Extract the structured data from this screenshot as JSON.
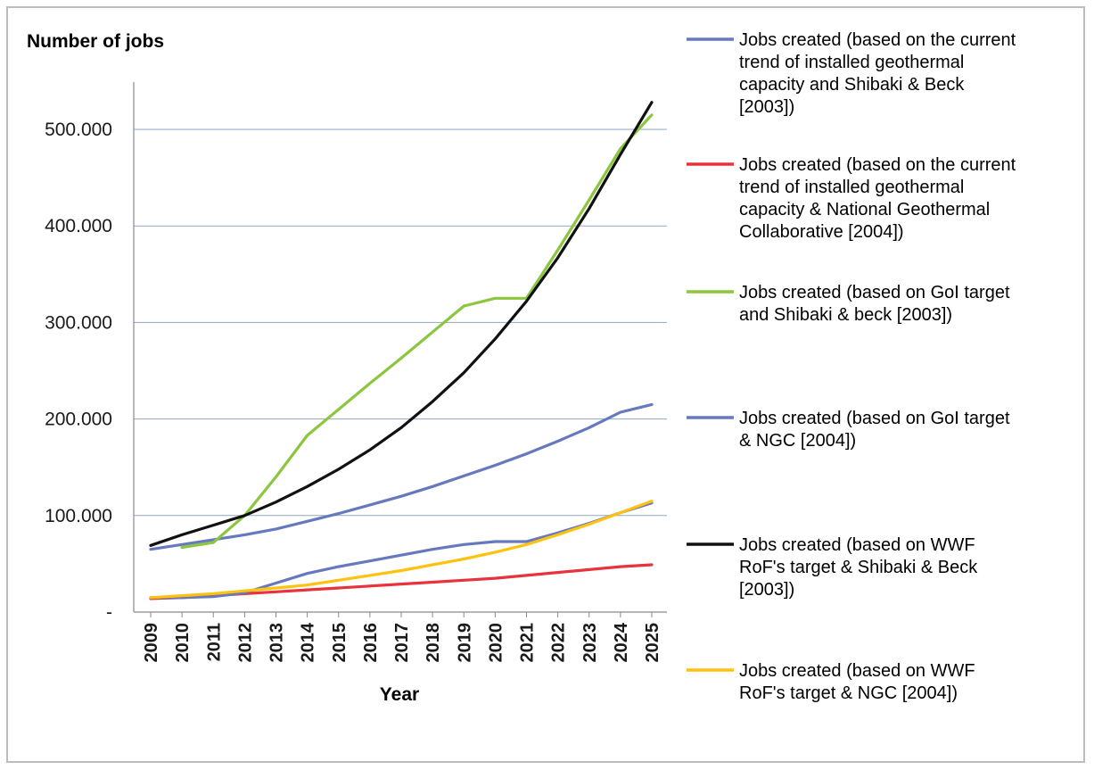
{
  "chart_data": {
    "type": "line",
    "ylabel": "Number of jobs",
    "xlabel": "Year",
    "ylim": [
      0,
      550000
    ],
    "y_ticks": [
      {
        "value": 0,
        "label": "-"
      },
      {
        "value": 100000,
        "label": "100.000"
      },
      {
        "value": 200000,
        "label": "200.000"
      },
      {
        "value": 300000,
        "label": "300.000"
      },
      {
        "value": 400000,
        "label": "400.000"
      },
      {
        "value": 500000,
        "label": "500.000"
      }
    ],
    "grid": true,
    "legend_position": "right",
    "categories": [
      "2009",
      "2010",
      "2011",
      "2012",
      "2013",
      "2014",
      "2015",
      "2016",
      "2017",
      "2018",
      "2019",
      "2020",
      "2021",
      "2022",
      "2023",
      "2024",
      "2025"
    ],
    "series": [
      {
        "name": "Jobs created (based on the current trend of installed geothermal capacity and Shibaki & Beck [2003])",
        "color": "#6779be",
        "values": [
          65000,
          70000,
          75000,
          80000,
          86000,
          94000,
          102000,
          111000,
          120000,
          130000,
          141000,
          152000,
          164000,
          177000,
          191000,
          207000,
          215000
        ]
      },
      {
        "name": "Jobs created (based on the current trend of installed geothermal capacity & National Geothermal Collaborative [2004])",
        "color": "#e8323c",
        "values": [
          14000,
          15000,
          17000,
          19000,
          21000,
          23000,
          25000,
          27000,
          29000,
          31000,
          33000,
          35000,
          38000,
          41000,
          44000,
          47000,
          49000
        ]
      },
      {
        "name": "Jobs created (based on GoI target and Shibaki & beck [2003])",
        "color": "#8cc63f",
        "values": [
          null,
          67000,
          72000,
          100000,
          140000,
          183000,
          210000,
          237000,
          263000,
          290000,
          317000,
          325000,
          325000,
          375000,
          427000,
          480000,
          515000
        ]
      },
      {
        "name": "Jobs created (based on GoI target & NGC [2004])",
        "color": "#6779be",
        "values": [
          15000,
          15000,
          16000,
          20000,
          30000,
          40000,
          47000,
          53000,
          59000,
          65000,
          70000,
          73000,
          73000,
          82000,
          92000,
          103000,
          113000
        ]
      },
      {
        "name": "Jobs created (based on WWF RoF's target & Shibaki & Beck [2003])",
        "color": "#111111",
        "values": [
          69000,
          80000,
          90000,
          100000,
          114000,
          130000,
          148000,
          168000,
          191000,
          218000,
          248000,
          283000,
          322000,
          367000,
          418000,
          474000,
          528000
        ]
      },
      {
        "name": "Jobs created (based on WWF RoF's target & NGC [2004])",
        "color": "#ffc20e",
        "values": [
          15000,
          17000,
          19000,
          22000,
          25000,
          28000,
          33000,
          38000,
          43000,
          49000,
          55000,
          62000,
          70000,
          80000,
          91000,
          103000,
          115000
        ]
      }
    ]
  }
}
